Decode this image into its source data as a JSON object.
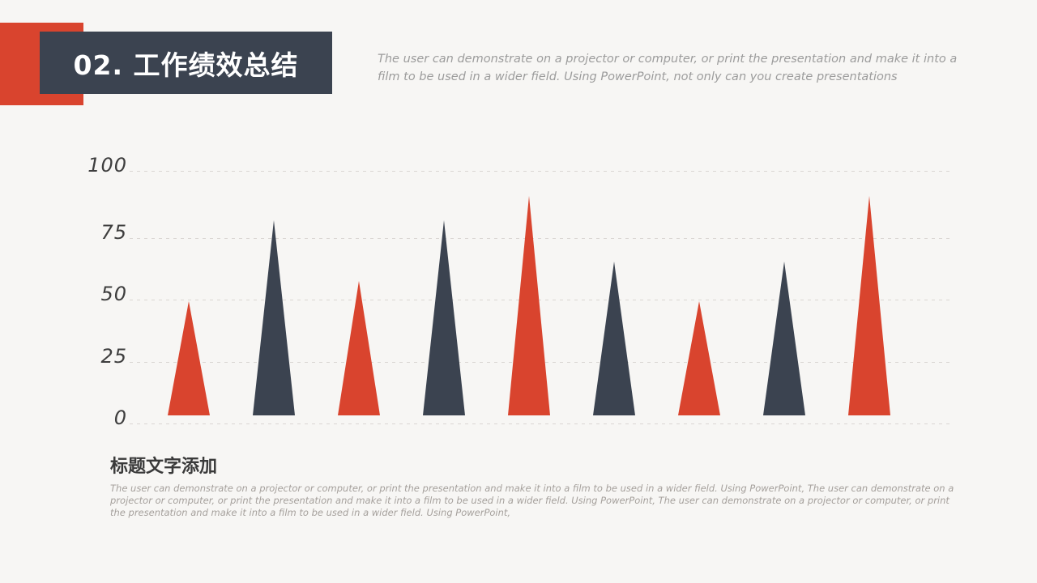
{
  "slide": {
    "background_color": "#f7f6f4"
  },
  "header": {
    "title": "02. 工作绩效总结",
    "accent_color": "#d9442e",
    "box_color": "#3b4350",
    "intro_lines": [
      "The user can demonstrate on a projector or computer, or print the presentation and make it into a",
      "film to be used in a wider field. Using PowerPoint, not only can you create presentations"
    ]
  },
  "chart_data": {
    "type": "bar",
    "shape": "triangle-peak",
    "values": [
      47,
      80,
      55,
      80,
      90,
      63,
      47,
      63,
      90
    ],
    "colors": [
      "#d9442e",
      "#3b4350",
      "#d9442e",
      "#3b4350",
      "#d9442e",
      "#3b4350",
      "#d9442e",
      "#3b4350",
      "#d9442e"
    ],
    "series": [
      {
        "name": "red",
        "color": "#d9442e"
      },
      {
        "name": "dark",
        "color": "#3b4350"
      }
    ],
    "y_ticks": [
      100,
      75,
      50,
      25,
      0
    ],
    "ylim": [
      0,
      100
    ],
    "xlabel": "",
    "ylabel": "",
    "grid": "horizontal-dashed",
    "legend": "none",
    "gridline_color": "#dad6d3"
  },
  "caption": {
    "title": "标题文字添加",
    "body_lines": [
      "The user can demonstrate on a projector or computer, or print the presentation and make it into a film to be used in a wider field. Using PowerPoint, The user can demonstrate on a",
      "projector or computer, or print the presentation and make it into a film to be used in a wider field. Using PowerPoint, The user can demonstrate on a projector or computer, or print",
      "the presentation and make it into a film to be used in a wider field. Using PowerPoint,"
    ]
  }
}
